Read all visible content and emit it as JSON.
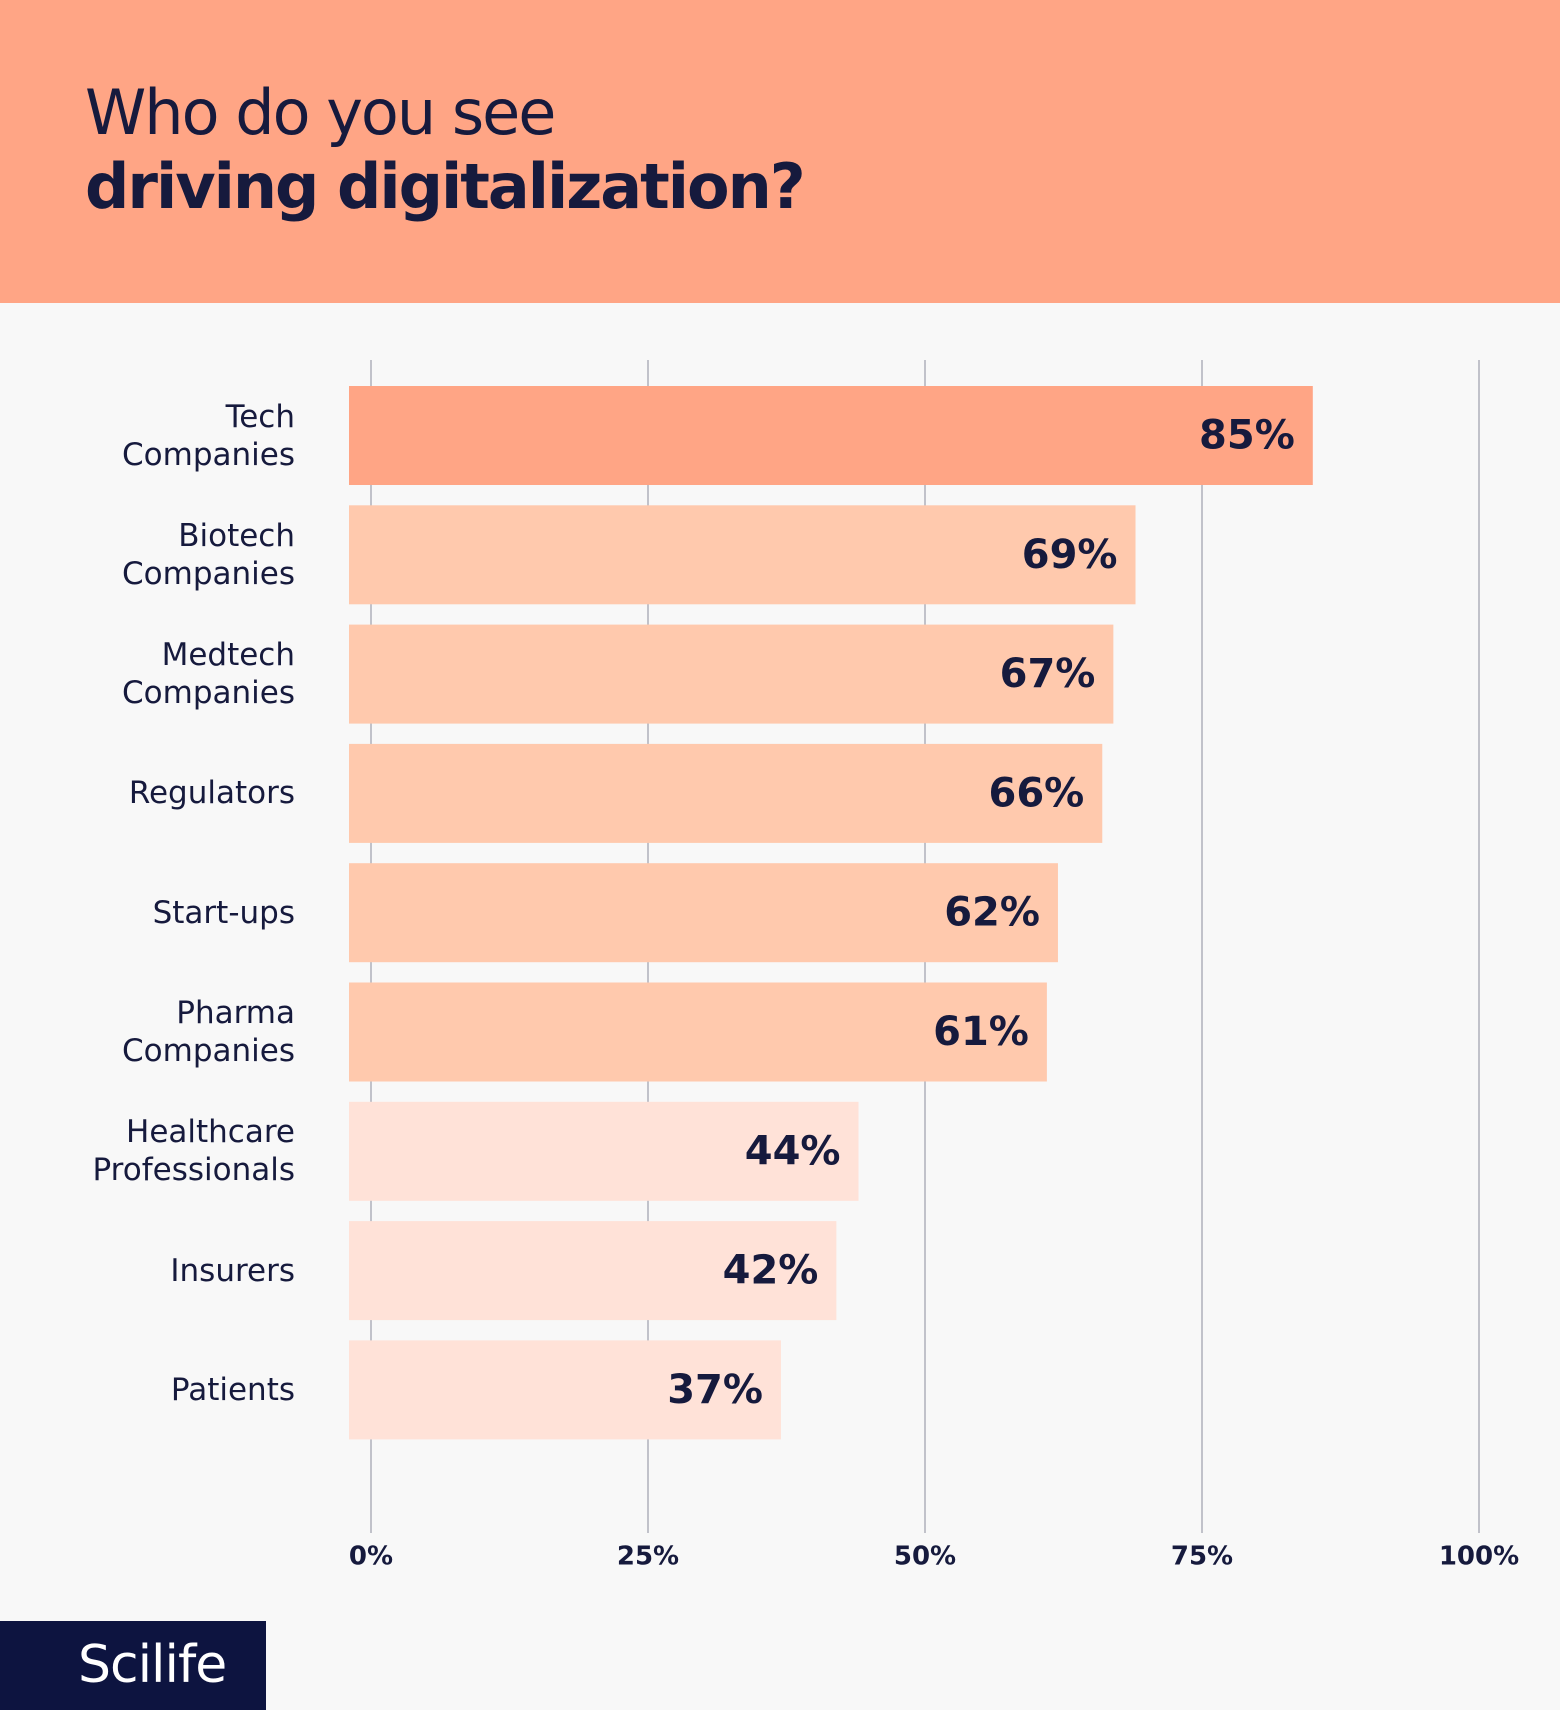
{
  "chart_data": {
    "type": "barh",
    "title_lines": [
      "Who do you see",
      "driving digitalization?"
    ],
    "categories": [
      "Tech\nCompanies",
      "Biotech\nCompanies",
      "Medtech\nCompanies",
      "Regulators",
      "Start-ups",
      "Pharma\nCompanies",
      "Healthcare\nProfessionals",
      "Insurers",
      "Patients"
    ],
    "values": [
      85,
      69,
      67,
      66,
      62,
      61,
      44,
      42,
      37
    ],
    "value_labels": [
      "85%",
      "69%",
      "67%",
      "66%",
      "62%",
      "61%",
      "44%",
      "42%",
      "37%"
    ],
    "colors": [
      "#ffa585",
      "#ffc9ad",
      "#ffc9ad",
      "#ffc9ad",
      "#ffc9ad",
      "#ffc9ad",
      "#ffe2d8",
      "#ffe2d8",
      "#ffe2d8"
    ],
    "xlim": [
      0,
      100
    ],
    "xticks": [
      {
        "value": 0,
        "label": "0%"
      },
      {
        "value": 25,
        "label": "25%"
      },
      {
        "value": 50,
        "label": "50%"
      },
      {
        "value": 75,
        "label": "75%"
      },
      {
        "value": 100,
        "label": "100%"
      }
    ],
    "grid": true
  },
  "logo": "Scilife"
}
